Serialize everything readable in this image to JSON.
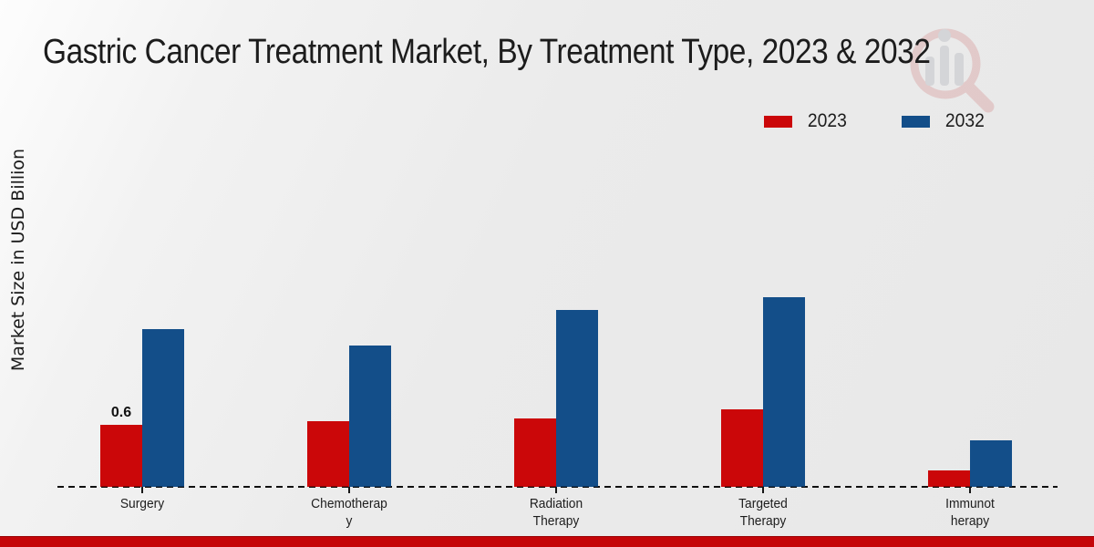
{
  "chart_data": {
    "type": "bar",
    "title": "Gastric Cancer Treatment Market, By Treatment Type, 2023 & 2032",
    "ylabel": "Market Size in USD Billion",
    "xlabel": "",
    "categories": [
      "Surgery",
      "Chemotherapy",
      "Radiation Therapy",
      "Targeted Therapy",
      "Immunotherapy"
    ],
    "category_label_lines": [
      [
        "Surgery"
      ],
      [
        "Chemotherap",
        "y"
      ],
      [
        "Radiation",
        "Therapy"
      ],
      [
        "Targeted",
        "Therapy"
      ],
      [
        "Immunot",
        "herapy"
      ]
    ],
    "series": [
      {
        "name": "2023",
        "color": "#cb0709",
        "values": [
          0.6,
          0.64,
          0.66,
          0.75,
          0.16
        ]
      },
      {
        "name": "2032",
        "color": "#134e89",
        "values": [
          1.53,
          1.37,
          1.72,
          1.84,
          0.45
        ]
      }
    ],
    "data_labels": [
      {
        "series": "2023",
        "category": "Surgery",
        "text": "0.6"
      }
    ],
    "ylim": [
      0,
      2
    ],
    "y_axis_ticks_visible": false,
    "grid": false,
    "baseline_style": "dashed",
    "legend_position": "top-right"
  },
  "footer_bar": {
    "color": "#c50508"
  },
  "watermark": {
    "icon": "magnifier-bar-chart-logo",
    "ring_color": "#dcb0b0",
    "bars_color": "#c3c5ca"
  }
}
